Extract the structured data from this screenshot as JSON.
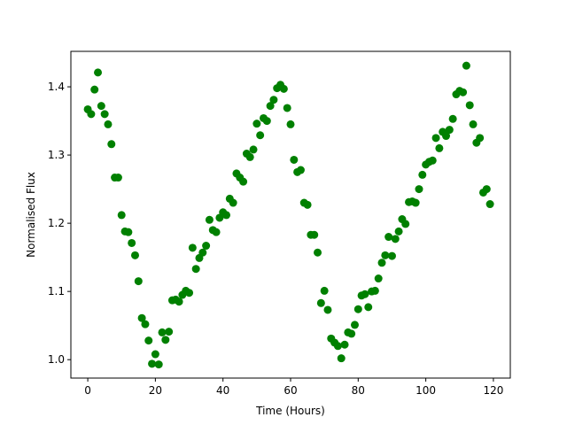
{
  "chart_data": {
    "type": "scatter",
    "title": "",
    "xlabel": "Time (Hours)",
    "ylabel": "Normalised Flux",
    "xlim": [
      -5,
      125
    ],
    "ylim": [
      0.973,
      1.452
    ],
    "xticks": [
      0,
      20,
      40,
      60,
      80,
      100,
      120
    ],
    "yticks": [
      1.0,
      1.1,
      1.2,
      1.3,
      1.4
    ],
    "xtick_labels": [
      "0",
      "20",
      "40",
      "60",
      "80",
      "100",
      "120"
    ],
    "ytick_labels": [
      "1.0",
      "1.1",
      "1.2",
      "1.3",
      "1.4"
    ],
    "grid": false,
    "marker_color": "#008000",
    "series": [
      {
        "x": [
          0,
          1,
          2,
          3,
          4,
          5,
          6,
          7,
          8,
          9,
          10,
          11,
          12,
          13,
          14,
          15,
          16,
          17,
          18,
          19,
          20,
          21,
          22,
          23,
          24,
          25,
          26,
          27,
          28,
          29,
          30,
          31,
          32,
          33,
          34,
          35,
          36,
          37,
          38,
          39,
          40,
          41,
          42,
          43,
          44,
          45,
          46,
          47,
          48,
          49,
          50,
          51,
          52,
          53,
          54,
          55,
          56,
          57,
          58,
          59,
          60,
          61,
          62,
          63,
          64,
          65,
          66,
          67,
          68,
          69,
          70,
          71,
          72,
          73,
          74,
          75,
          76,
          77,
          78,
          79,
          80,
          81,
          82,
          83,
          84,
          85,
          86,
          87,
          88,
          89,
          90,
          91,
          92,
          93,
          94,
          95,
          96,
          97,
          98,
          99,
          100,
          101,
          102,
          103,
          104,
          105,
          106,
          107,
          108,
          109,
          110,
          111,
          112,
          113,
          114,
          115,
          116,
          117,
          118,
          119
        ],
        "y": [
          1.367,
          1.36,
          1.396,
          1.421,
          1.372,
          1.36,
          1.345,
          1.316,
          1.267,
          1.267,
          1.212,
          1.188,
          1.187,
          1.171,
          1.153,
          1.115,
          1.061,
          1.052,
          1.028,
          0.994,
          1.008,
          0.993,
          1.04,
          1.029,
          1.041,
          1.087,
          1.088,
          1.085,
          1.095,
          1.101,
          1.098,
          1.164,
          1.133,
          1.149,
          1.157,
          1.167,
          1.205,
          1.19,
          1.187,
          1.208,
          1.216,
          1.212,
          1.236,
          1.23,
          1.273,
          1.267,
          1.261,
          1.302,
          1.297,
          1.308,
          1.346,
          1.329,
          1.354,
          1.35,
          1.372,
          1.381,
          1.398,
          1.403,
          1.397,
          1.369,
          1.345,
          1.293,
          1.275,
          1.278,
          1.23,
          1.227,
          1.183,
          1.183,
          1.157,
          1.083,
          1.101,
          1.073,
          1.031,
          1.025,
          1.02,
          1.002,
          1.022,
          1.04,
          1.038,
          1.051,
          1.074,
          1.094,
          1.096,
          1.077,
          1.1,
          1.101,
          1.119,
          1.142,
          1.153,
          1.18,
          1.152,
          1.177,
          1.188,
          1.206,
          1.199,
          1.231,
          1.232,
          1.23,
          1.25,
          1.271,
          1.286,
          1.29,
          1.292,
          1.325,
          1.31,
          1.334,
          1.328,
          1.337,
          1.353,
          1.389,
          1.394,
          1.392,
          1.431,
          1.373,
          1.345,
          1.318,
          1.325,
          1.245,
          1.25,
          1.228
        ]
      }
    ]
  }
}
